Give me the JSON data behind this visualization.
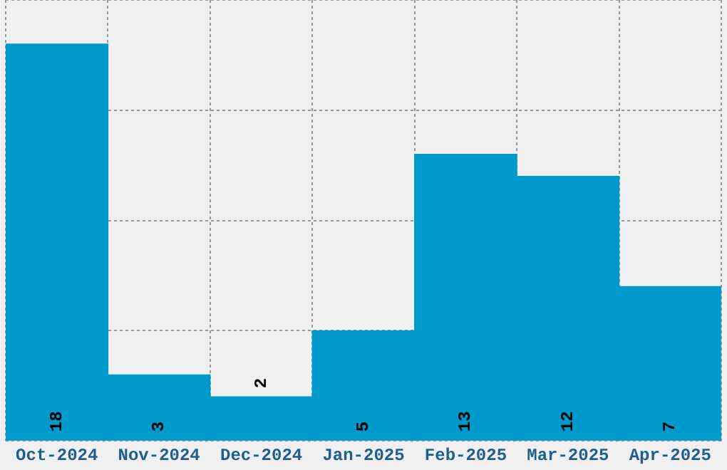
{
  "chart_data": {
    "type": "bar",
    "categories": [
      "Oct-2024",
      "Nov-2024",
      "Dec-2024",
      "Jan-2025",
      "Feb-2025",
      "Mar-2025",
      "Apr-2025"
    ],
    "values": [
      18,
      3,
      2,
      5,
      13,
      12,
      7
    ],
    "color": "#0099cc",
    "ylim": [
      0,
      20
    ],
    "yticks": [
      {
        "value": 0,
        "label": null
      },
      {
        "value": 5,
        "label": null
      },
      {
        "value": 10,
        "label": null
      },
      {
        "value": 15,
        "label": null
      },
      {
        "value": 20,
        "label": null
      }
    ],
    "grid": true,
    "tick_labels": "x",
    "data_labels": true
  }
}
